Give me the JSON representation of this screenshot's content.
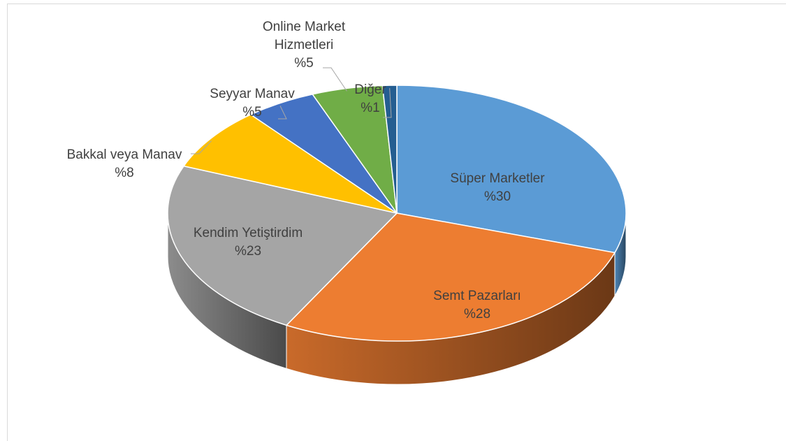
{
  "chart_data": {
    "type": "pie",
    "categories": [
      "Süper Marketler",
      "Semt Pazarları",
      "Kendim Yetiştirdim",
      "Bakkal veya Manav",
      "Seyyar Manav",
      "Online Market Hizmetleri",
      "Diğer"
    ],
    "values": [
      30,
      28,
      23,
      8,
      5,
      5,
      1
    ],
    "value_labels": [
      "%30",
      "%28",
      "%23",
      "%8",
      "%5",
      "%5",
      "%1"
    ],
    "colors": [
      "#5b9bd5",
      "#ed7d31",
      "#a5a5a5",
      "#ffc000",
      "#4472c4",
      "#70ad47",
      "#255e91"
    ]
  }
}
